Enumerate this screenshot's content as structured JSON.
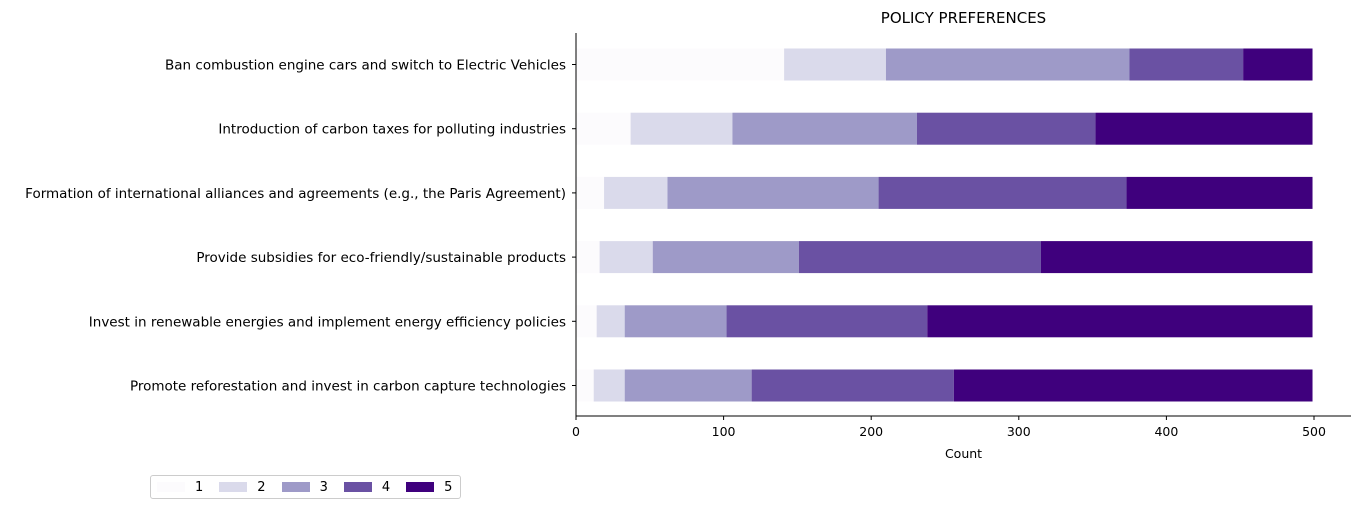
{
  "chart_data": {
    "type": "bar",
    "orientation": "horizontal",
    "stacked": true,
    "title": "POLICY PREFERENCES",
    "xlabel": "Count",
    "ylabel": "",
    "xlim": [
      0,
      525
    ],
    "xticks": [
      0,
      100,
      200,
      300,
      400,
      500
    ],
    "grid": false,
    "legend_position": "bottom-left",
    "categories": [
      "Ban combustion engine cars and switch to Electric Vehicles",
      "Introduction of carbon taxes for polluting industries",
      "Formation of international alliances and agreements (e.g., the Paris Agreement)",
      "Provide subsidies for eco-friendly/sustainable products",
      "Invest in renewable energies and implement energy efficiency policies",
      "Promote reforestation and invest in carbon capture technologies"
    ],
    "series": [
      {
        "name": "1",
        "color": "#fcfbfd",
        "values": [
          141,
          37,
          19,
          16,
          14,
          12
        ]
      },
      {
        "name": "2",
        "color": "#dadaeb",
        "values": [
          69,
          69,
          43,
          36,
          19,
          21
        ]
      },
      {
        "name": "3",
        "color": "#9e9ac8",
        "values": [
          165,
          125,
          143,
          99,
          69,
          86
        ]
      },
      {
        "name": "4",
        "color": "#6a51a3",
        "values": [
          77,
          121,
          168,
          164,
          136,
          137
        ]
      },
      {
        "name": "5",
        "color": "#3f007d",
        "values": [
          47,
          147,
          126,
          184,
          261,
          243
        ]
      }
    ]
  }
}
